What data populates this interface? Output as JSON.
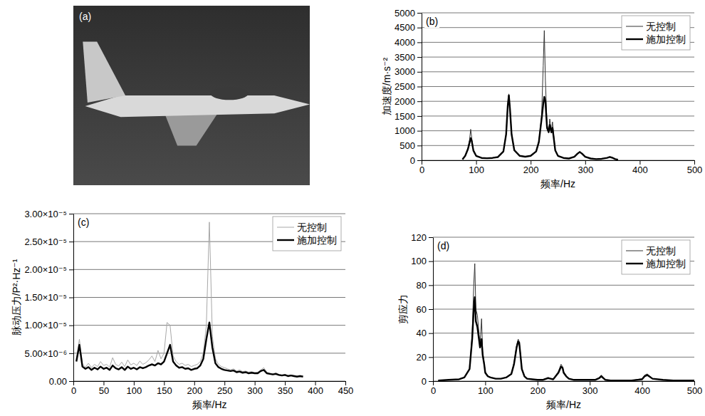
{
  "chart_data": [
    {
      "type": "image",
      "title": "(a)"
    },
    {
      "type": "line",
      "title": "(b)",
      "x_label": "频率/Hz",
      "y_label": "加速度/m·s⁻²",
      "xlim": [
        0,
        500
      ],
      "xticks": [
        0,
        100,
        200,
        300,
        400,
        500
      ],
      "ylim": [
        0,
        5000
      ],
      "yticks": [
        0,
        500,
        1000,
        1500,
        2000,
        2500,
        3000,
        3500,
        4000,
        4500,
        5000
      ],
      "grid": true,
      "legend": "upper right",
      "x": [
        75,
        80,
        85,
        88,
        90,
        92,
        95,
        100,
        110,
        120,
        130,
        140,
        150,
        155,
        158,
        160,
        162,
        165,
        170,
        180,
        190,
        200,
        210,
        215,
        220,
        223,
        225,
        227,
        230,
        233,
        235,
        238,
        240,
        243,
        245,
        250,
        260,
        270,
        280,
        285,
        290,
        295,
        300,
        310,
        320,
        330,
        340,
        345,
        350,
        355,
        360
      ],
      "series": [
        {
          "name": "无控制",
          "color": "#333333",
          "values": [
            30,
            150,
            400,
            700,
            1050,
            750,
            350,
            150,
            80,
            70,
            80,
            110,
            300,
            900,
            1900,
            2250,
            1800,
            900,
            350,
            150,
            120,
            150,
            300,
            650,
            1500,
            3200,
            4400,
            2700,
            1200,
            1000,
            1400,
            1000,
            1300,
            700,
            350,
            150,
            80,
            60,
            120,
            220,
            300,
            220,
            120,
            60,
            40,
            50,
            80,
            120,
            90,
            40,
            20
          ]
        },
        {
          "name": "施加控制",
          "color": "#000000",
          "values": [
            30,
            150,
            380,
            600,
            750,
            650,
            330,
            150,
            80,
            70,
            80,
            110,
            300,
            880,
            1850,
            2200,
            1750,
            880,
            340,
            150,
            120,
            150,
            300,
            620,
            1400,
            1900,
            2150,
            2000,
            1100,
            950,
            1200,
            950,
            1100,
            650,
            340,
            150,
            80,
            60,
            120,
            210,
            280,
            210,
            120,
            60,
            40,
            50,
            80,
            110,
            85,
            40,
            20
          ]
        }
      ]
    },
    {
      "type": "line",
      "title": "(c)",
      "x_label": "频率/Hz",
      "y_label": "脉动压力/P²·Hz⁻¹",
      "xlim": [
        0,
        450
      ],
      "xticks": [
        0,
        50,
        100,
        150,
        200,
        250,
        300,
        350,
        400,
        450
      ],
      "ylim": [
        0,
        3e-05
      ],
      "yticks": [
        {
          "value": 0,
          "label": "0.00"
        },
        {
          "value": 5e-06,
          "label": "5.00×10⁻⁶"
        },
        {
          "value": 1e-05,
          "label": "1.00×10⁻⁵"
        },
        {
          "value": 1.5e-05,
          "label": "1.50×10⁻⁵"
        },
        {
          "value": 2e-05,
          "label": "2.00×10⁻⁵"
        },
        {
          "value": 2.5e-05,
          "label": "2.50×10⁻⁵"
        },
        {
          "value": 3e-05,
          "label": "3.00×10⁻⁵"
        }
      ],
      "grid": true,
      "legend": "upper right",
      "x": [
        5,
        10,
        15,
        20,
        25,
        30,
        35,
        40,
        45,
        50,
        55,
        60,
        65,
        70,
        75,
        80,
        85,
        90,
        95,
        100,
        105,
        110,
        115,
        120,
        125,
        130,
        135,
        140,
        145,
        150,
        155,
        160,
        165,
        170,
        175,
        180,
        185,
        190,
        195,
        200,
        205,
        210,
        215,
        220,
        225,
        230,
        235,
        240,
        245,
        250,
        255,
        260,
        265,
        270,
        275,
        280,
        285,
        290,
        295,
        300,
        305,
        310,
        315,
        320,
        325,
        330,
        335,
        340,
        345,
        350,
        355,
        360,
        365,
        370,
        375,
        380
      ],
      "series": [
        {
          "name": "无控制",
          "color": "#a8a8a8",
          "values": [
            4e-06,
            7.5e-06,
            3e-06,
            2.5e-06,
            3.2e-06,
            2.4e-06,
            3e-06,
            2.6e-06,
            3.5e-06,
            2.8e-06,
            3e-06,
            2.5e-06,
            4.2e-06,
            3e-06,
            2.7e-06,
            3.4e-06,
            2.6e-06,
            3.8e-06,
            2.9e-06,
            3.2e-06,
            2.8e-06,
            3.6e-06,
            3e-06,
            3.3e-06,
            3.8e-06,
            4.5e-06,
            3.5e-06,
            5.5e-06,
            4e-06,
            5e-06,
            1.05e-05,
            1e-05,
            4.5e-06,
            3.5e-06,
            3e-06,
            3.2e-06,
            2.8e-06,
            3e-06,
            2.6e-06,
            2.8e-06,
            3e-06,
            3.5e-06,
            5e-06,
            1e-05,
            2.85e-05,
            8e-06,
            4e-06,
            3e-06,
            2.6e-06,
            2.4e-06,
            2.2e-06,
            2e-06,
            2.2e-06,
            1.8e-06,
            2e-06,
            1.7e-06,
            1.8e-06,
            1.6e-06,
            1.7e-06,
            1.5e-06,
            1.6e-06,
            2e-06,
            2.4e-06,
            1.6e-06,
            1.4e-06,
            1.3e-06,
            1.5e-06,
            1.2e-06,
            1.1e-06,
            1.2e-06,
            1e-06,
            1.1e-06,
            1e-06,
            9e-07,
            1e-06,
            9e-07
          ]
        },
        {
          "name": "施加控制",
          "color": "#000000",
          "values": [
            3.5e-06,
            6.5e-06,
            2.6e-06,
            2.2e-06,
            2.5e-06,
            2e-06,
            2.4e-06,
            2.1e-06,
            2.6e-06,
            2.2e-06,
            2.4e-06,
            2e-06,
            2.8e-06,
            2.3e-06,
            2.1e-06,
            2.5e-06,
            2e-06,
            2.6e-06,
            2.2e-06,
            2.4e-06,
            2.1e-06,
            2.5e-06,
            2.3e-06,
            2.5e-06,
            2.8e-06,
            3e-06,
            2.8e-06,
            3.2e-06,
            3e-06,
            3.5e-06,
            5e-06,
            6.5e-06,
            3.5e-06,
            2.8e-06,
            2.4e-06,
            2.5e-06,
            2.2e-06,
            2.3e-06,
            2e-06,
            2.2e-06,
            2.3e-06,
            2.8e-06,
            4e-06,
            7.5e-06,
            1.05e-05,
            6e-06,
            3.2e-06,
            2.5e-06,
            2.2e-06,
            2e-06,
            1.9e-06,
            1.8e-06,
            1.9e-06,
            1.6e-06,
            1.7e-06,
            1.5e-06,
            1.6e-06,
            1.4e-06,
            1.5e-06,
            1.4e-06,
            1.4e-06,
            1.8e-06,
            2e-06,
            1.4e-06,
            1.3e-06,
            1.2e-06,
            1.3e-06,
            1.1e-06,
            1e-06,
            1.1e-06,
            9e-07,
            1e-06,
            9e-07,
            8e-07,
            9e-07,
            8e-07
          ]
        }
      ]
    },
    {
      "type": "line",
      "title": "(d)",
      "x_label": "频率/Hz",
      "y_label": "剪应力",
      "xlim": [
        0,
        500
      ],
      "xticks": [
        0,
        100,
        200,
        300,
        400,
        500
      ],
      "ylim": [
        0,
        120
      ],
      "yticks": [
        0,
        20,
        40,
        60,
        80,
        100,
        120
      ],
      "grid": true,
      "legend": "upper right",
      "x": [
        10,
        30,
        50,
        60,
        70,
        75,
        78,
        80,
        82,
        85,
        88,
        90,
        93,
        95,
        98,
        100,
        105,
        110,
        120,
        130,
        140,
        150,
        155,
        160,
        163,
        165,
        168,
        170,
        175,
        180,
        190,
        200,
        210,
        220,
        225,
        230,
        240,
        245,
        248,
        250,
        255,
        260,
        270,
        280,
        290,
        300,
        310,
        318,
        322,
        326,
        330,
        340,
        360,
        380,
        400,
        405,
        410,
        415,
        420,
        440,
        460,
        480,
        500
      ],
      "series": [
        {
          "name": "无控制",
          "color": "#333333",
          "values": [
            0.5,
            1,
            1.5,
            3,
            10,
            40,
            80,
            98,
            60,
            55,
            40,
            30,
            52,
            25,
            15,
            8,
            4,
            3,
            2,
            2,
            3,
            6,
            15,
            30,
            35,
            33,
            20,
            10,
            4,
            2,
            1.5,
            1,
            1,
            3,
            2,
            1.5,
            8,
            14,
            12,
            8,
            4,
            2,
            1,
            1,
            1,
            1,
            1,
            3,
            5,
            3,
            1,
            0.5,
            0.5,
            0.5,
            2,
            5,
            6,
            4,
            2,
            1,
            0.5,
            0.5,
            0.5
          ]
        },
        {
          "name": "施加控制",
          "color": "#000000",
          "values": [
            0.5,
            1,
            1.5,
            3,
            10,
            35,
            60,
            70,
            50,
            45,
            35,
            28,
            35,
            22,
            14,
            7,
            4,
            3,
            2,
            2,
            3,
            6,
            14,
            28,
            33,
            32,
            19,
            10,
            4,
            2,
            1.5,
            1,
            1,
            2.5,
            2,
            1.5,
            7,
            12,
            11,
            7,
            4,
            2,
            1,
            1,
            1,
            1,
            1,
            2.5,
            4,
            2.5,
            1,
            0.5,
            0.5,
            0.5,
            1.5,
            4,
            5,
            3.5,
            2,
            1,
            0.5,
            0.5,
            0.5
          ]
        }
      ]
    }
  ]
}
